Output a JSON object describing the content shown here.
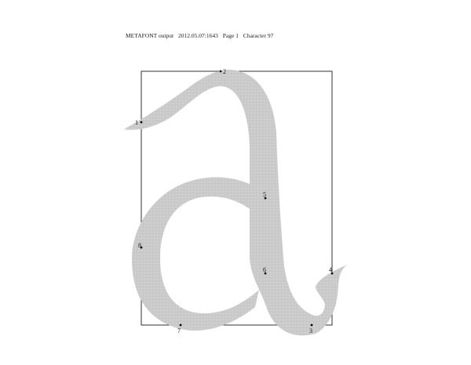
{
  "header": {
    "program": "METAFONT output",
    "datestamp": "2012.05.07:1643",
    "page": "Page 1",
    "character": "Character 97"
  },
  "glyph": {
    "fill_color": "#c8c8c8",
    "grid_color": "#ffffff",
    "box_color": "#000000",
    "points": [
      {
        "label": "1"
      },
      {
        "label": "2"
      },
      {
        "label": "3"
      },
      {
        "label": "4"
      },
      {
        "label": "5"
      },
      {
        "label": "6"
      },
      {
        "label": "7"
      },
      {
        "label": "8"
      }
    ]
  }
}
